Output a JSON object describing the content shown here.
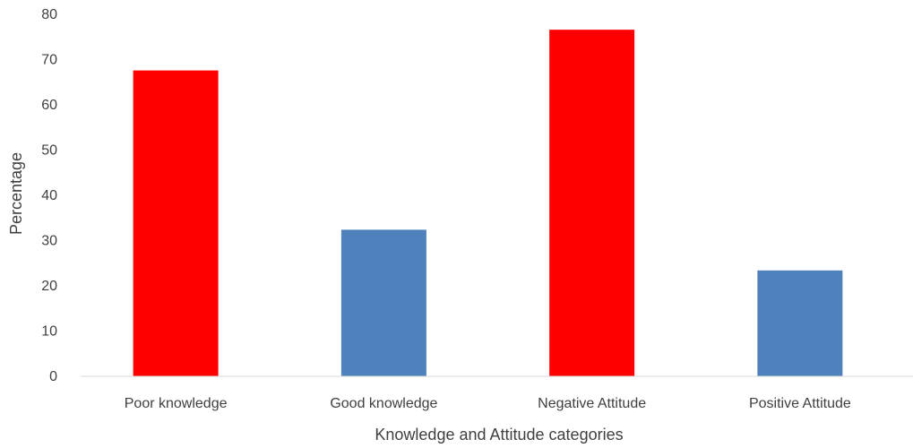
{
  "chart_data": {
    "type": "bar",
    "title": "",
    "xlabel": "Knowledge and Attitude categories",
    "ylabel": "Percentage",
    "ylim": [
      0,
      80
    ],
    "yticks": [
      "0",
      "10",
      "20",
      "30",
      "40",
      "50",
      "60",
      "70",
      "80"
    ],
    "categories": [
      "Poor knowledge",
      "Good knowledge",
      "Negative Attitude",
      "Positive Attitude"
    ],
    "values": [
      67.6,
      32.4,
      76.6,
      23.4
    ],
    "bar_colors": [
      "#ff0000",
      "#4f81bd",
      "#ff0000",
      "#4f81bd"
    ],
    "grid": false,
    "legend": "none"
  }
}
